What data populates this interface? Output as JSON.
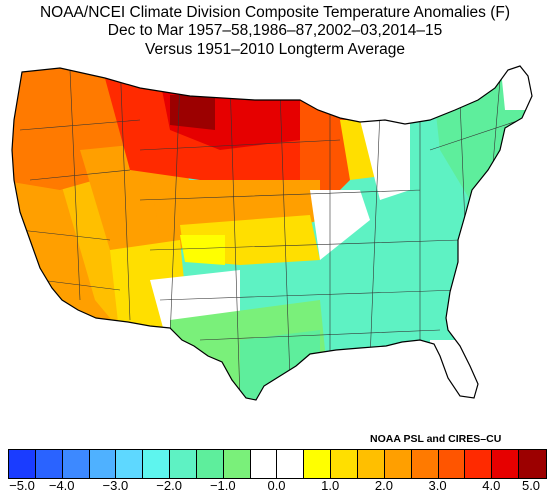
{
  "title": {
    "line1": "NOAA/NCEI Climate Division Composite Temperature Anomalies (F)",
    "line2": "Dec to Mar  1957–58,1986–87,2002–03,2014–15",
    "line3": "Versus 1951–2010 Longterm Average"
  },
  "credit": "NOAA PSL and CIRES–CU",
  "legend": {
    "units": "F",
    "colors": [
      "#1a3cff",
      "#2a63ff",
      "#3d89ff",
      "#4fb1ff",
      "#5ed8ff",
      "#5ef5ee",
      "#5ef2c3",
      "#5eee9c",
      "#7af07a",
      "#ffffff",
      "#ffffff",
      "#ffff00",
      "#ffdf00",
      "#ffbf00",
      "#ff9f00",
      "#ff7a00",
      "#ff5500",
      "#ff2a00",
      "#e60000",
      "#9c0000"
    ],
    "tick_values": [
      -5.0,
      -4.0,
      -3.0,
      -2.0,
      -1.0,
      0.0,
      1.0,
      2.0,
      3.0,
      4.0,
      5.0
    ],
    "tick_labels": [
      "−5.0",
      "−4.0",
      "−3.0",
      "−2.0",
      "−1.0",
      "0.0",
      "1.0",
      "2.0",
      "3.0",
      "4.0",
      "5.0"
    ]
  },
  "map": {
    "region": "contiguous-us-climate-divisions",
    "pattern": [
      {
        "area": "northern-plains",
        "anomaly": 4.5
      },
      {
        "area": "montana-dakotas",
        "anomaly": 3.8
      },
      {
        "area": "upper-midwest",
        "anomaly": 3.0
      },
      {
        "area": "pacific-northwest",
        "anomaly": 2.8
      },
      {
        "area": "great-basin",
        "anomaly": 2.3
      },
      {
        "area": "california",
        "anomaly": 1.7
      },
      {
        "area": "southwest",
        "anomaly": 1.2
      },
      {
        "area": "central-plains",
        "anomaly": 0.6
      },
      {
        "area": "mid-south",
        "anomaly": 0.0
      },
      {
        "area": "texas",
        "anomaly": -1.0
      },
      {
        "area": "southeast",
        "anomaly": -1.4
      },
      {
        "area": "northeast",
        "anomaly": -1.3
      },
      {
        "area": "florida",
        "anomaly": 0.0
      }
    ]
  }
}
